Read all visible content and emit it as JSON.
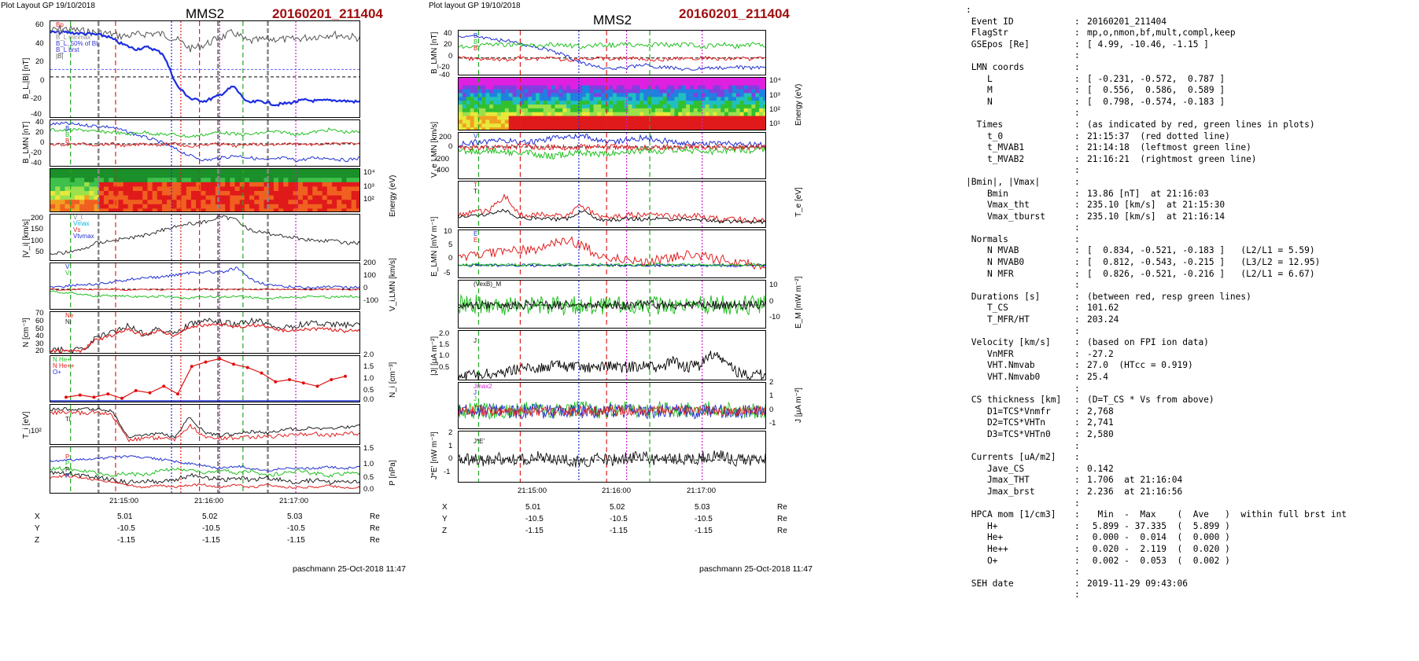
{
  "left_figure": {
    "header": "Plot Layout GP 19/10/2018",
    "spacecraft": "MMS2",
    "event": "20160201_211404",
    "footer": "paschmann 25-Oct-2018 11:47",
    "time_ticks": [
      "21:15:00",
      "21:16:00",
      "21:17:00"
    ],
    "panels": [
      {
        "id": "b-mag",
        "ylabel": "B_L,|B| [nT]",
        "yticks": [
          "60",
          "40",
          "20",
          "0",
          "-20",
          "-40"
        ],
        "legend": [
          "Bp",
          "|B|",
          "B_L minmax",
          "B_L, 50% of BL",
          "B_L brst",
          "|B|"
        ]
      },
      {
        "id": "b-lmn",
        "ylabel": "B_LMN [nT]",
        "yticks": [
          "40",
          "20",
          "0",
          "-20",
          "-40"
        ],
        "legend": [
          "B",
          "B",
          "B"
        ]
      },
      {
        "id": "ion-spec",
        "right_label": "Energy (eV)",
        "rticks": [
          "10⁴",
          "10³",
          "10²"
        ]
      },
      {
        "id": "vi-mag",
        "ylabel": "|V_i| [km/s]",
        "yticks": [
          "200",
          "150",
          "100",
          "50"
        ],
        "legend": [
          "V_t",
          "Vmax",
          "Vs",
          "Vtvmax"
        ]
      },
      {
        "id": "vi-lmn",
        "right_label": "V_i,LMN [km/s]",
        "rticks": [
          "200",
          "100",
          "0",
          "-100"
        ],
        "legend": [
          "V",
          "V"
        ]
      },
      {
        "id": "density",
        "ylabel": "N [cm⁻³]",
        "yticks": [
          "70",
          "60",
          "50",
          "40",
          "30",
          "20"
        ],
        "legend": [
          "Ne",
          "Ni"
        ]
      },
      {
        "id": "hpca-density",
        "right_label": "N_i [cm⁻³]",
        "rticks": [
          "2.0",
          "1.5",
          "1.0",
          "0.5",
          "0.0"
        ],
        "legend": [
          "N He+",
          "N He++",
          "O+"
        ]
      },
      {
        "id": "temperature",
        "ylabel": "T_i [eV]",
        "yticks": [
          "10²"
        ],
        "legend": [
          "Ti"
        ]
      },
      {
        "id": "pressure",
        "right_label": "P [nPa]",
        "rticks": [
          "1.5",
          "1.0",
          "0.5",
          "0.0"
        ],
        "legend": [
          "P",
          "P",
          "P",
          "P"
        ]
      }
    ],
    "position": {
      "labels": [
        "X",
        "Y",
        "Z"
      ],
      "unit": "Re",
      "values": [
        [
          "5.01",
          "5.02",
          "5.03"
        ],
        [
          "-10.5",
          "-10.5",
          "-10.5"
        ],
        [
          "-1.15",
          "-1.15",
          "-1.15"
        ]
      ]
    }
  },
  "right_figure": {
    "header": "Plot layout GP 19/10/2018",
    "spacecraft": "MMS2",
    "event": "20160201_211404",
    "footer": "paschmann 25-Oct-2018 11:47",
    "time_ticks": [
      "21:15:00",
      "21:16:00",
      "21:17:00"
    ],
    "panels": [
      {
        "id": "b-lmn-r",
        "ylabel": "B_LMN [nT]",
        "yticks": [
          "40",
          "20",
          "0",
          "-20",
          "-40"
        ],
        "legend": [
          "B",
          "B",
          "B"
        ]
      },
      {
        "id": "electron-spec",
        "right_label": "Energy (eV)",
        "rticks": [
          "10⁴",
          "10³",
          "10²",
          "10¹"
        ]
      },
      {
        "id": "ve-lmn",
        "ylabel": "V_e LMN [km/s]",
        "yticks": [
          "200",
          "0",
          "-200",
          "-400"
        ],
        "legend": [
          "V"
        ]
      },
      {
        "id": "te",
        "right_label": "T_e [eV]",
        "legend": [
          "T",
          "T"
        ]
      },
      {
        "id": "e-lmn",
        "ylabel": "E_LMN [mV m⁻¹]",
        "yticks": [
          "10",
          "5",
          "0",
          "-5"
        ],
        "legend": [
          "E",
          "E"
        ]
      },
      {
        "id": "em",
        "right_label": "E_M [mW m⁻²]",
        "rticks": [
          "10",
          "0",
          "-10"
        ],
        "legend": [
          "(VexB)_M"
        ]
      },
      {
        "id": "j-mag",
        "ylabel": "|J| [μA m⁻²]",
        "yticks": [
          "2.0",
          "1.5",
          "1.0",
          "0.5"
        ],
        "legend": [
          "J"
        ]
      },
      {
        "id": "j-lmn",
        "right_label": "J [μA m⁻²]",
        "rticks": [
          "2",
          "1",
          "0",
          "-1"
        ],
        "legend": [
          "Jmax2",
          "J",
          "J"
        ]
      },
      {
        "id": "jdote",
        "ylabel": "J*E' [nW m⁻³]",
        "yticks": [
          "2",
          "1",
          "0",
          "-1"
        ],
        "legend": [
          "J*E'"
        ]
      }
    ],
    "position": {
      "labels": [
        "X",
        "Y",
        "Z"
      ],
      "unit": "Re",
      "values": [
        [
          "5.01",
          "5.02",
          "5.03"
        ],
        [
          "-10.5",
          "-10.5",
          "-10.5"
        ],
        [
          "-1.15",
          "-1.15",
          "-1.15"
        ]
      ]
    }
  },
  "summary": [
    {
      "k": ":",
      "c": "",
      "v": ""
    },
    {
      "k": " Event ID",
      "c": ":",
      "v": "20160201_211404"
    },
    {
      "k": " FlagStr",
      "c": ":",
      "v": "mp,o,nmon,bf,mult,compl,keep"
    },
    {
      "k": " GSEpos [Re]",
      "c": ":",
      "v": "[ 4.99, -10.46, -1.15 ]"
    },
    {
      "k": "",
      "c": ":",
      "v": ""
    },
    {
      "k": " LMN coords",
      "c": ":",
      "v": ""
    },
    {
      "k": "    L",
      "c": ":",
      "v": "[ -0.231, -0.572,  0.787 ]"
    },
    {
      "k": "    M",
      "c": ":",
      "v": "[  0.556,  0.586,  0.589 ]"
    },
    {
      "k": "    N",
      "c": ":",
      "v": "[  0.798, -0.574, -0.183 ]"
    },
    {
      "k": "",
      "c": ":",
      "v": ""
    },
    {
      "k": "  Times",
      "c": ":",
      "v": "(as indicated by red, green lines in plots)"
    },
    {
      "k": "    t_0",
      "c": ":",
      "v": "21:15:37  (red dotted line)"
    },
    {
      "k": "    t_MVAB1",
      "c": ":",
      "v": "21:14:18  (leftmost green line)"
    },
    {
      "k": "    t_MVAB2",
      "c": ":",
      "v": "21:16:21  (rightmost green line)"
    },
    {
      "k": "",
      "c": ":",
      "v": ""
    },
    {
      "k": "|Bmin|, |Vmax|",
      "c": ":",
      "v": ""
    },
    {
      "k": "    Bmin",
      "c": ":",
      "v": "13.86 [nT]  at 21:16:03"
    },
    {
      "k": "    Vmax_tht",
      "c": ":",
      "v": "235.10 [km/s]  at 21:15:30"
    },
    {
      "k": "    Vmax_tburst",
      "c": ":",
      "v": "235.10 [km/s]  at 21:16:14"
    },
    {
      "k": "",
      "c": ":",
      "v": ""
    },
    {
      "k": " Normals",
      "c": ":",
      "v": ""
    },
    {
      "k": "    N MVAB",
      "c": ":",
      "v": "[  0.834, -0.521, -0.183 ]   (L2/L1 = 5.59)"
    },
    {
      "k": "    N MVAB0",
      "c": ":",
      "v": "[  0.812, -0.543, -0.215 ]   (L3/L2 = 12.95)"
    },
    {
      "k": "    N MFR",
      "c": ":",
      "v": "[  0.826, -0.521, -0.216 ]   (L2/L1 = 6.67)"
    },
    {
      "k": "",
      "c": ":",
      "v": ""
    },
    {
      "k": " Durations [s]",
      "c": ":",
      "v": "(between red, resp green lines)"
    },
    {
      "k": "    T_CS",
      "c": ":",
      "v": "101.62"
    },
    {
      "k": "    T_MFR/HT",
      "c": ":",
      "v": "203.24"
    },
    {
      "k": "",
      "c": ":",
      "v": ""
    },
    {
      "k": " Velocity [km/s]",
      "c": ":",
      "v": "(based on FPI ion data)"
    },
    {
      "k": "    VnMFR",
      "c": ":",
      "v": "-27.2"
    },
    {
      "k": "    VHT.Nmvab",
      "c": ":",
      "v": "27.0  (HTcc = 0.919)"
    },
    {
      "k": "    VHT.Nmvab0",
      "c": ":",
      "v": "25.4"
    },
    {
      "k": "",
      "c": ":",
      "v": ""
    },
    {
      "k": " CS thickness [km]",
      "c": ":",
      "v": "(D=T_CS * Vs from above)"
    },
    {
      "k": "    D1=TCS*Vnmfr",
      "c": ":",
      "v": "2,768"
    },
    {
      "k": "    D2=TCS*VHTn",
      "c": ":",
      "v": "2,741"
    },
    {
      "k": "    D3=TCS*VHTn0",
      "c": ":",
      "v": "2,580"
    },
    {
      "k": "",
      "c": ":",
      "v": ""
    },
    {
      "k": " Currents [uA/m2]",
      "c": ":",
      "v": ""
    },
    {
      "k": "    Jave_CS",
      "c": ":",
      "v": "0.142"
    },
    {
      "k": "    Jmax_THT",
      "c": ":",
      "v": "1.706  at 21:16:04"
    },
    {
      "k": "    Jmax_brst",
      "c": ":",
      "v": "2.236  at 21:16:56"
    },
    {
      "k": "",
      "c": ":",
      "v": ""
    },
    {
      "k": " HPCA mom [1/cm3]",
      "c": ":",
      "v": "  Min  -  Max    (  Ave   )  within full brst int"
    },
    {
      "k": "    H+",
      "c": ":",
      "v": " 5.899 - 37.335  (  5.899 )"
    },
    {
      "k": "    He+",
      "c": ":",
      "v": " 0.000 -  0.014  (  0.000 )"
    },
    {
      "k": "    He++",
      "c": ":",
      "v": " 0.020 -  2.119  (  0.020 )"
    },
    {
      "k": "    O+",
      "c": ":",
      "v": " 0.002 -  0.053  (  0.002 )"
    },
    {
      "k": "",
      "c": ":",
      "v": ""
    },
    {
      "k": " SEH date",
      "c": ":",
      "v": "2019-11-29 09:43:06"
    },
    {
      "k": "",
      "c": ":",
      "v": ""
    }
  ],
  "chart_data": [
    {
      "type": "line",
      "title": "MMS2 20160201_211404",
      "x_range": [
        "21:14:15",
        "21:17:55"
      ],
      "series": [
        {
          "name": "B_L brst",
          "values": [
            48,
            48,
            47,
            46,
            44,
            36,
            30,
            32,
            25,
            -10,
            -24,
            -26,
            -20,
            -10,
            -28,
            -26,
            -30,
            -28,
            -25,
            -26,
            -25,
            -26,
            -27
          ],
          "color": "#1c2ee0"
        },
        {
          "name": "|B|",
          "values": [
            50,
            52,
            50,
            48,
            47,
            44,
            45,
            47,
            46,
            40,
            30,
            35,
            42,
            48,
            38,
            40,
            41,
            40,
            42,
            44,
            46,
            44,
            42
          ],
          "color": "#555555"
        }
      ],
      "ylim": [
        -45,
        60
      ],
      "ylabel": "B_L,|B| [nT]"
    },
    {
      "type": "line",
      "title": "MMS2 20160201_211404",
      "series": [
        {
          "name": "N He++",
          "values": [
            0.2,
            0.3,
            0.2,
            0.35,
            0.15,
            0.5,
            0.4,
            0.7,
            0.35,
            1.6,
            1.8,
            1.95,
            1.7,
            1.55,
            1.3,
            0.9,
            1.0,
            0.85,
            0.7,
            1.0,
            1.15
          ],
          "color": "#e01010"
        }
      ],
      "ylim": [
        0,
        2.0
      ],
      "ylabel": "N_i [cm⁻³]"
    },
    {
      "type": "line",
      "title": "MMS2 20160201_211404",
      "series": [
        {
          "name": "J",
          "values": [
            0.25,
            0.25,
            0.3,
            0.35,
            0.5,
            0.6,
            0.55,
            0.7,
            0.65,
            0.6,
            0.55,
            0.7,
            0.6,
            0.65,
            0.7,
            0.5,
            0.9,
            0.6,
            0.7,
            1.2,
            0.8,
            0.35,
            0.3,
            0.25
          ],
          "color": "#000000"
        }
      ],
      "ylim": [
        0,
        2.2
      ],
      "ylabel": "|J| [μA m⁻²]"
    }
  ]
}
